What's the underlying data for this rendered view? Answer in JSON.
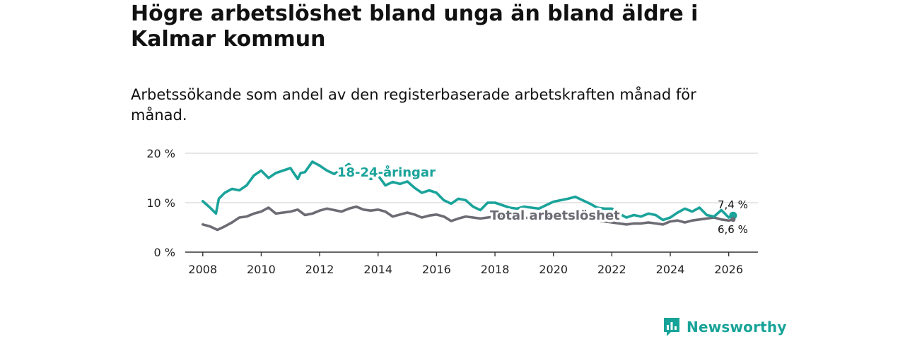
{
  "title": "Högre arbetslöshet bland unga än bland äldre i Kalmar kommun",
  "subtitle": "Arbetssökande som andel av den registerbaserade arbetskraften månad för månad.",
  "brand": "Newsworthy",
  "colors": {
    "youth": "#1aa39a",
    "total": "#6d6b73",
    "grid": "#d6d6d6",
    "axis": "#333333"
  },
  "chart_data": {
    "type": "line",
    "xlim": [
      2007.4,
      2027.0
    ],
    "ylim": [
      0,
      20
    ],
    "y_ticks": [
      0,
      10,
      20
    ],
    "y_tick_labels": [
      "0 %",
      "10 %",
      "20 %"
    ],
    "x_ticks": [
      2008,
      2010,
      2012,
      2014,
      2016,
      2018,
      2020,
      2022,
      2024,
      2026
    ],
    "x_tick_labels": [
      "2008",
      "2010",
      "2012",
      "2014",
      "2016",
      "2018",
      "2020",
      "2022",
      "2024",
      "2026"
    ],
    "grid": "horizontal",
    "series": [
      {
        "name": "18-24-åringar",
        "color": "#1aa39a",
        "end_label": "7,4 %",
        "x": [
          2008.0,
          2008.25,
          2008.45,
          2008.55,
          2008.75,
          2009.0,
          2009.25,
          2009.5,
          2009.75,
          2010.0,
          2010.25,
          2010.5,
          2010.75,
          2011.0,
          2011.25,
          2011.35,
          2011.5,
          2011.75,
          2012.0,
          2012.25,
          2012.5,
          2012.75,
          2013.0,
          2013.25,
          2013.5,
          2013.75,
          2014.0,
          2014.25,
          2014.5,
          2014.75,
          2015.0,
          2015.25,
          2015.5,
          2015.75,
          2016.0,
          2016.25,
          2016.5,
          2016.75,
          2017.0,
          2017.25,
          2017.5,
          2017.75,
          2018.0,
          2018.25,
          2018.5,
          2018.75,
          2019.0,
          2019.25,
          2019.5,
          2019.75,
          2020.0,
          2020.25,
          2020.5,
          2020.75,
          2021.0,
          2021.25,
          2021.5,
          2021.75,
          2022.0,
          2022.25,
          2022.5,
          2022.75,
          2023.0,
          2023.25,
          2023.5,
          2023.75,
          2024.0,
          2024.25,
          2024.5,
          2024.75,
          2025.0,
          2025.25,
          2025.5,
          2025.75,
          2026.0,
          2026.15
        ],
        "values": [
          10.3,
          9.0,
          7.8,
          10.8,
          12.0,
          12.8,
          12.5,
          13.5,
          15.5,
          16.5,
          15.0,
          16.0,
          16.5,
          17.0,
          14.8,
          16.0,
          16.2,
          18.3,
          17.5,
          16.5,
          15.8,
          16.8,
          17.8,
          16.5,
          15.5,
          14.8,
          15.5,
          13.5,
          14.2,
          13.8,
          14.3,
          13.0,
          12.0,
          12.5,
          12.0,
          10.5,
          9.8,
          10.8,
          10.5,
          9.2,
          8.5,
          10.0,
          10.0,
          9.5,
          9.0,
          8.8,
          9.2,
          9.0,
          8.8,
          9.5,
          10.2,
          10.5,
          10.8,
          11.2,
          10.5,
          9.8,
          9.0,
          8.8,
          8.8,
          7.8,
          7.0,
          7.5,
          7.2,
          7.8,
          7.5,
          6.5,
          7.0,
          8.0,
          8.8,
          8.2,
          9.0,
          7.5,
          7.2,
          8.5,
          7.0,
          7.4
        ]
      },
      {
        "name": "Total arbetslöshet",
        "color": "#6d6b73",
        "end_label": "6,6 %",
        "x": [
          2008.0,
          2008.25,
          2008.5,
          2008.75,
          2009.0,
          2009.25,
          2009.5,
          2009.75,
          2010.0,
          2010.25,
          2010.5,
          2010.75,
          2011.0,
          2011.25,
          2011.5,
          2011.75,
          2012.0,
          2012.25,
          2012.5,
          2012.75,
          2013.0,
          2013.25,
          2013.5,
          2013.75,
          2014.0,
          2014.25,
          2014.5,
          2014.75,
          2015.0,
          2015.25,
          2015.5,
          2015.75,
          2016.0,
          2016.25,
          2016.5,
          2016.75,
          2017.0,
          2017.25,
          2017.5,
          2017.75,
          2018.0,
          2018.25,
          2018.5,
          2018.75,
          2019.0,
          2019.25,
          2019.5,
          2019.75,
          2020.0,
          2020.25,
          2020.5,
          2020.75,
          2021.0,
          2021.25,
          2021.5,
          2021.75,
          2022.0,
          2022.25,
          2022.5,
          2022.75,
          2023.0,
          2023.25,
          2023.5,
          2023.75,
          2024.0,
          2024.25,
          2024.5,
          2024.75,
          2025.0,
          2025.25,
          2025.5,
          2025.75,
          2026.0,
          2026.15
        ],
        "values": [
          5.6,
          5.2,
          4.5,
          5.2,
          6.0,
          7.0,
          7.2,
          7.8,
          8.2,
          9.0,
          7.8,
          8.0,
          8.2,
          8.6,
          7.5,
          7.8,
          8.4,
          8.8,
          8.5,
          8.2,
          8.8,
          9.2,
          8.6,
          8.4,
          8.6,
          8.2,
          7.2,
          7.6,
          8.0,
          7.6,
          7.0,
          7.4,
          7.6,
          7.2,
          6.3,
          6.8,
          7.2,
          7.0,
          6.8,
          7.0,
          7.2,
          7.4,
          7.2,
          7.0,
          7.0,
          6.8,
          6.8,
          7.0,
          7.2,
          7.6,
          7.4,
          7.0,
          7.0,
          6.8,
          6.4,
          6.2,
          6.0,
          5.8,
          5.6,
          5.8,
          5.8,
          6.0,
          5.8,
          5.6,
          6.2,
          6.4,
          6.0,
          6.4,
          6.6,
          6.8,
          7.0,
          6.6,
          6.4,
          6.6
        ]
      }
    ]
  }
}
